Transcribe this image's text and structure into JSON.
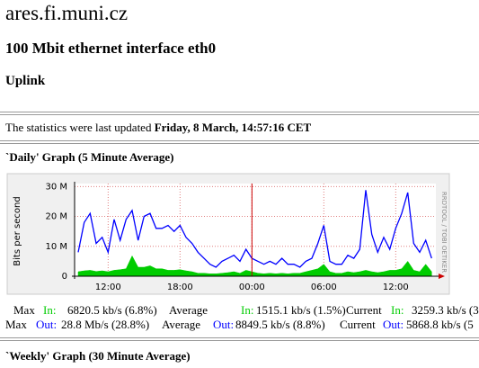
{
  "header": {
    "title": "ares.fi.muni.cz",
    "interface": "100 Mbit ethernet interface eth0",
    "description": "Uplink"
  },
  "updated": {
    "text": "The statistics were last updated",
    "timestamp": "Friday, 8 March, 14:57:16 CET"
  },
  "daily": {
    "title": "`Daily' Graph (5 Minute Average)",
    "stats": [
      [
        "Max",
        "In:",
        "6820.5 kb/s (6.8%)",
        "Average",
        "In:",
        "1515.1 kb/s (1.5%)",
        "Current",
        "In:",
        "3259.3 kb/s (3"
      ],
      [
        "Max",
        "Out:",
        "28.8 Mb/s (28.8%)",
        "Average",
        "Out:",
        "8849.5 kb/s (8.8%)",
        "Current",
        "Out:",
        "5868.8 kb/s (5"
      ]
    ]
  },
  "chart_data": {
    "type": "line",
    "y_label": "Bits per second",
    "credit": "RRDTOOL / TOBI OETIKER",
    "x": [
      9.5,
      10,
      10.5,
      11,
      11.5,
      12,
      12.5,
      13,
      13.5,
      14,
      14.5,
      15,
      15.5,
      16,
      16.5,
      17,
      17.5,
      18,
      18.5,
      19,
      19.5,
      20,
      20.5,
      21,
      21.5,
      22,
      22.5,
      23,
      23.5,
      24,
      24.5,
      25,
      25.5,
      26,
      26.5,
      27,
      27.5,
      28,
      28.5,
      29,
      29.5,
      30,
      30.5,
      31,
      31.5,
      32,
      32.5,
      33,
      33.5,
      34,
      34.5,
      35,
      35.5,
      36,
      36.5,
      37,
      37.5,
      38,
      38.5,
      39
    ],
    "xlim": [
      9.2,
      39.35
    ],
    "xticks": [
      {
        "value": 12,
        "label": "12:00"
      },
      {
        "value": 18,
        "label": "18:00"
      },
      {
        "value": 24,
        "label": "00:00"
      },
      {
        "value": 30,
        "label": "06:00"
      },
      {
        "value": 36,
        "label": "12:00"
      }
    ],
    "ylim": [
      0,
      31
    ],
    "yticks": [
      0,
      {
        "value": 10,
        "label": "10 M"
      },
      {
        "value": 20,
        "label": "20 M"
      },
      {
        "value": 30,
        "label": "30 M"
      }
    ],
    "grid": true,
    "series": [
      {
        "color": "#00cc00",
        "area": true,
        "values": [
          1.5,
          1.8,
          2,
          1.6,
          1.8,
          1.5,
          2,
          2.2,
          2.5,
          6.8,
          3,
          3,
          3.5,
          2.5,
          2.5,
          2,
          2,
          2.2,
          1.8,
          1.5,
          1,
          1,
          0.8,
          0.8,
          1,
          1.2,
          1.5,
          1,
          2,
          1.5,
          1,
          0.8,
          1,
          0.8,
          1,
          0.8,
          1,
          1,
          1.5,
          2,
          2.5,
          4,
          1.5,
          1,
          1,
          1.5,
          1.2,
          1.5,
          2,
          1.5,
          1.2,
          1.5,
          2,
          2,
          2.5,
          5,
          2,
          1.5,
          4,
          1.5
        ]
      },
      {
        "color": "#0000ff",
        "area": false,
        "values": [
          8,
          18,
          21,
          11,
          13,
          8,
          19,
          12,
          19,
          22,
          12,
          20,
          21,
          16,
          16,
          17,
          15,
          17,
          13,
          11,
          8,
          6,
          4,
          3,
          5,
          6,
          7,
          5,
          9,
          6,
          5,
          4,
          5,
          4,
          6,
          4,
          4,
          3,
          5,
          6,
          11,
          17,
          5,
          4,
          4,
          7,
          6,
          9,
          28.8,
          14,
          8,
          13,
          9,
          16,
          21,
          28,
          11,
          8,
          12,
          6
        ]
      }
    ]
  },
  "weekly": {
    "title": "`Weekly' Graph (30 Minute Average)"
  }
}
